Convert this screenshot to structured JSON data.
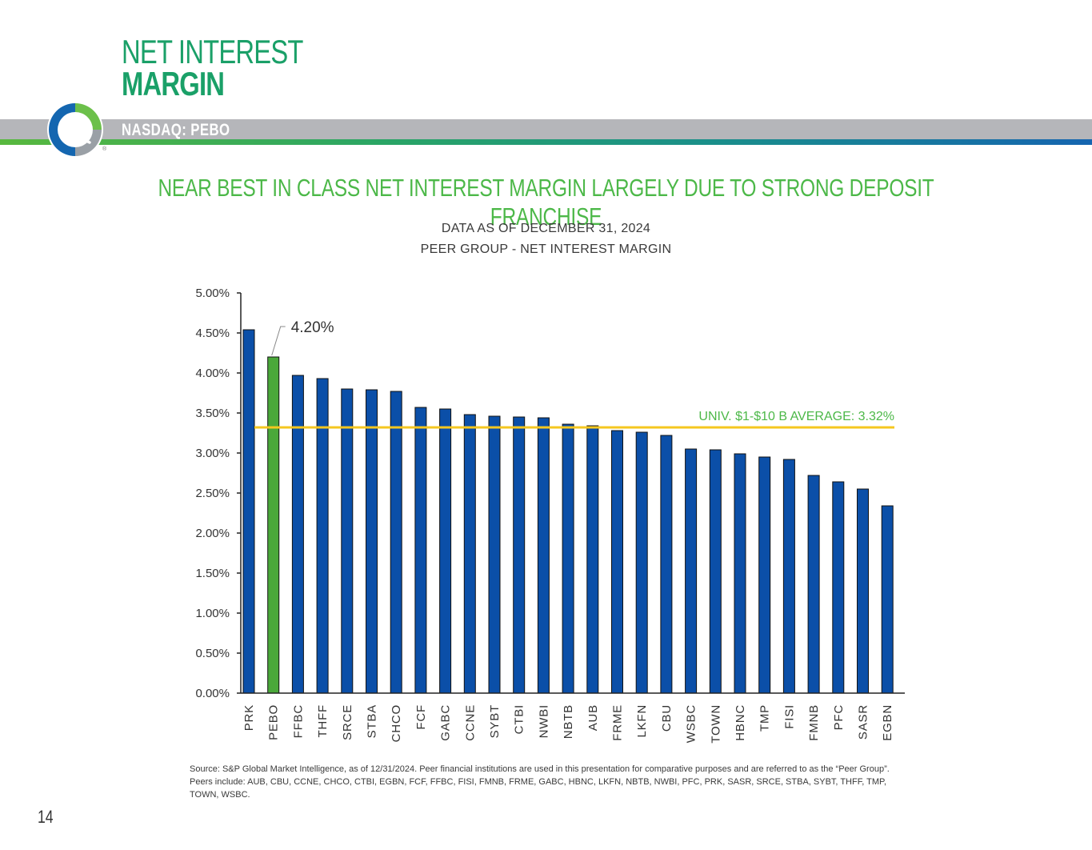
{
  "header": {
    "title_line1": "NET INTEREST",
    "title_line2": "MARGIN",
    "ticker": "NASDAQ: PEBO"
  },
  "subtitle": "NEAR BEST IN CLASS NET INTEREST MARGIN LARGELY DUE TO STRONG DEPOSIT FRANCHISE",
  "chart_data": {
    "type": "bar",
    "title": "DATA AS OF DECEMBER 31, 2024",
    "subtitle": "PEER GROUP - NET INTEREST MARGIN",
    "categories": [
      "PRK",
      "PEBO",
      "FFBC",
      "THFF",
      "SRCE",
      "STBA",
      "CHCO",
      "FCF",
      "GABC",
      "CCNE",
      "SYBT",
      "CTBI",
      "NWBI",
      "NBTB",
      "AUB",
      "FRME",
      "LKFN",
      "CBU",
      "WSBC",
      "TOWN",
      "HBNC",
      "TMP",
      "FISI",
      "FMNB",
      "PFC",
      "SASR",
      "EGBN"
    ],
    "values": [
      4.54,
      4.2,
      3.97,
      3.93,
      3.8,
      3.79,
      3.77,
      3.57,
      3.55,
      3.48,
      3.46,
      3.45,
      3.44,
      3.36,
      3.34,
      3.28,
      3.26,
      3.22,
      3.05,
      3.04,
      2.99,
      2.95,
      2.92,
      2.72,
      2.64,
      2.55,
      2.34
    ],
    "highlight": "PEBO",
    "highlight_label": "4.20%",
    "yticks": [
      "0.00%",
      "0.50%",
      "1.00%",
      "1.50%",
      "2.00%",
      "2.50%",
      "3.00%",
      "3.50%",
      "4.00%",
      "4.50%",
      "5.00%"
    ],
    "ylim": [
      0,
      5
    ],
    "reference_line": {
      "value": 3.32,
      "label": "UNIV. $1-$10 B AVERAGE: 3.32%"
    },
    "colors": {
      "bar": "#0b4fa8",
      "highlight": "#4aa83a",
      "reference": "#f5c71f",
      "reference_label": "#4cb848"
    }
  },
  "source": "Source: S&P Global Market Intelligence, as of 12/31/2024. Peer financial institutions are used in this presentation for comparative purposes and are referred to as the “Peer Group”. Peers include: AUB, CBU, CCNE, CHCO, CTBI, EGBN, FCF, FFBC, FISI, FMNB, FRME, GABC, HBNC, LKFN, NBTB, NWBI, PFC, PRK, SASR, SRCE, STBA, SYBT, THFF, TMP, TOWN, WSBC.",
  "page_number": "14",
  "logo": {
    "icon": "peoples-bancorp-logo-icon",
    "mark": "®"
  }
}
